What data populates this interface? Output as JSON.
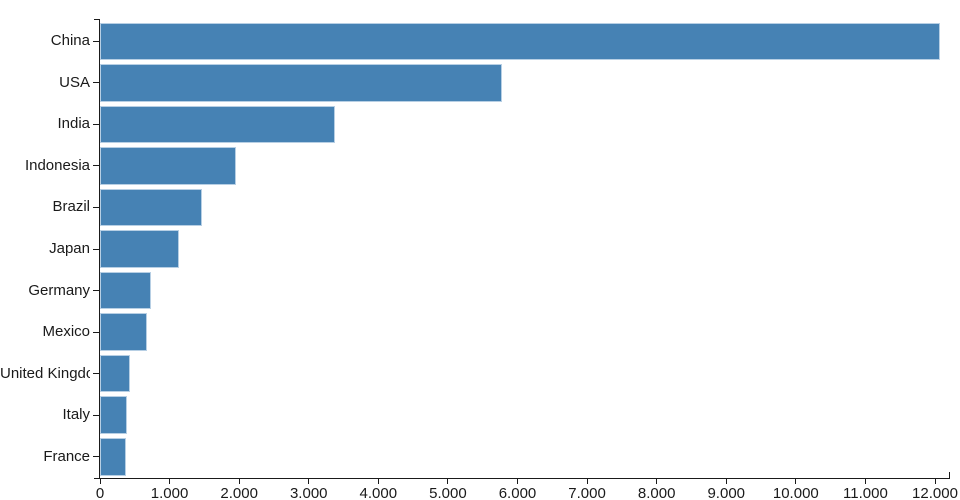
{
  "chart_data": {
    "type": "bar",
    "orientation": "horizontal",
    "title": "",
    "xlabel": "",
    "ylabel": "",
    "categories": [
      "China",
      "USA",
      "India",
      "Indonesia",
      "Brazil",
      "Japan",
      "Germany",
      "Mexico",
      "United Kingdom",
      "Italy",
      "France"
    ],
    "values": [
      12070,
      5775,
      3375,
      1960,
      1460,
      1140,
      730,
      680,
      435,
      390,
      370
    ],
    "x_axis": {
      "min": 0,
      "max": 12000,
      "tick_step": 1000,
      "tick_values": [
        0,
        1000,
        2000,
        3000,
        4000,
        5000,
        6000,
        7000,
        8000,
        9000,
        10000,
        11000,
        12000
      ],
      "tick_labels": [
        "0",
        "1.000",
        "2.000",
        "3.000",
        "4.000",
        "5.000",
        "6.000",
        "7.000",
        "8.000",
        "9.000",
        "10.000",
        "11.000",
        "12.000"
      ],
      "number_format": "thousands-dot"
    },
    "grid": false,
    "legend": "none",
    "colors": {
      "bar_fill": "#4682b4",
      "bar_stroke": "#b7cfe4",
      "axis": "#1a1a1a",
      "text": "#1a1a1a",
      "background": "#ffffff"
    }
  }
}
